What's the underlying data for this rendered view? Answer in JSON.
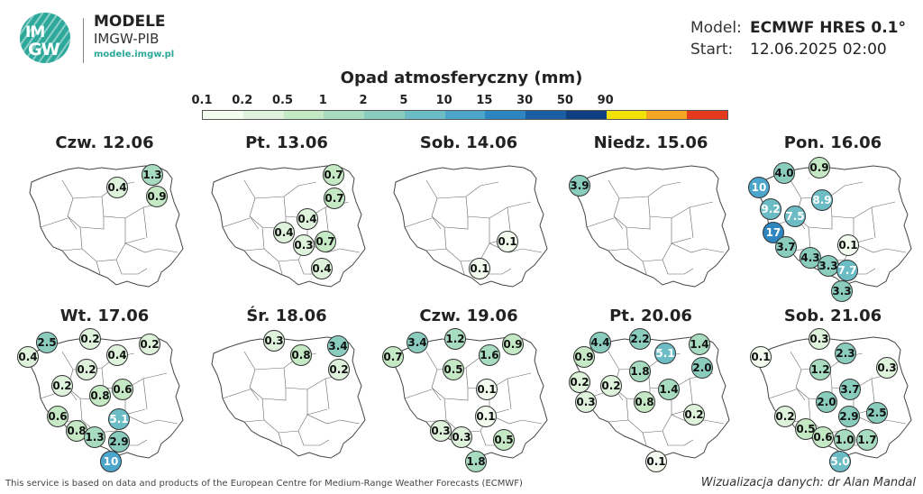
{
  "header": {
    "logo_line1": "IM",
    "logo_line2": "GW",
    "org_name": "MODELE",
    "org_sub": "IMGW-PIB",
    "org_url": "modele.imgw.pl",
    "model_label": "Model:",
    "model_value": "ECMWF HRES 0.1°",
    "start_label": "Start:",
    "start_value": "12.06.2025 02:00"
  },
  "legend": {
    "title": "Opad atmosferyczny (mm)",
    "ticks": [
      "0.1",
      "0.2",
      "0.5",
      "1",
      "2",
      "5",
      "10",
      "15",
      "30",
      "50",
      "90"
    ],
    "colors": [
      "#f3fbef",
      "#def2dc",
      "#c5e8c5",
      "#a8dcc0",
      "#8acdbf",
      "#6cbcc6",
      "#4ca6cc",
      "#2d86c0",
      "#1a5fa3",
      "#0f3f80",
      "#f2e20a",
      "#f4a623",
      "#e63a1e"
    ]
  },
  "days": [
    {
      "title": "Czw. 12.06",
      "values": [
        "0.4",
        "1.3",
        "0.9"
      ]
    },
    {
      "title": "Pt. 13.06",
      "values": [
        "0.7",
        "0.7",
        "0.4",
        "0.4",
        "0.3",
        "0.7",
        "0.4"
      ]
    },
    {
      "title": "Sob. 14.06",
      "values": [
        "0.1",
        "0.1"
      ]
    },
    {
      "title": "Niedz. 15.06",
      "values": [
        "3.9"
      ]
    },
    {
      "title": "Pon. 16.06",
      "values": [
        "4.0",
        "0.9",
        "10",
        "8.9",
        "9.2",
        "7.5",
        "17",
        "3.7",
        "0.1",
        "4.3",
        "3.3",
        "7.7",
        "3.3"
      ]
    },
    {
      "title": "Wt. 17.06",
      "values": [
        "2.5",
        "0.2",
        "0.2",
        "0.4",
        "0.4",
        "0.2",
        "0.2",
        "0.6",
        "0.8",
        "0.6",
        "5.1",
        "0.8",
        "1.3",
        "2.9",
        "10"
      ]
    },
    {
      "title": "Śr. 18.06",
      "values": [
        "0.3",
        "3.4",
        "0.8",
        "0.2"
      ]
    },
    {
      "title": "Czw. 19.06",
      "values": [
        "3.4",
        "1.2",
        "0.9",
        "0.7",
        "1.6",
        "0.5",
        "0.1",
        "0.1",
        "0.3",
        "0.3",
        "0.5",
        "1.8"
      ]
    },
    {
      "title": "Pt. 20.06",
      "values": [
        "4.4",
        "2.2",
        "1.4",
        "0.9",
        "5.1",
        "2.0",
        "1.8",
        "0.2",
        "0.2",
        "1.4",
        "0.3",
        "0.8",
        "0.2",
        "0.1"
      ]
    },
    {
      "title": "Sob. 21.06",
      "values": [
        "0.3",
        "0.1",
        "2.3",
        "1.2",
        "0.3",
        "3.7",
        "2.0",
        "2.5",
        "2.9",
        "0.2",
        "0.5",
        "0.6",
        "1.0",
        "1.7",
        "5.0"
      ]
    }
  ],
  "footer": {
    "left": "This service is based on data and products of the European Centre for Medium-Range Weather Forecasts (ECMWF)",
    "right": "Wizualizacja danych: dr Alan Mandal"
  }
}
